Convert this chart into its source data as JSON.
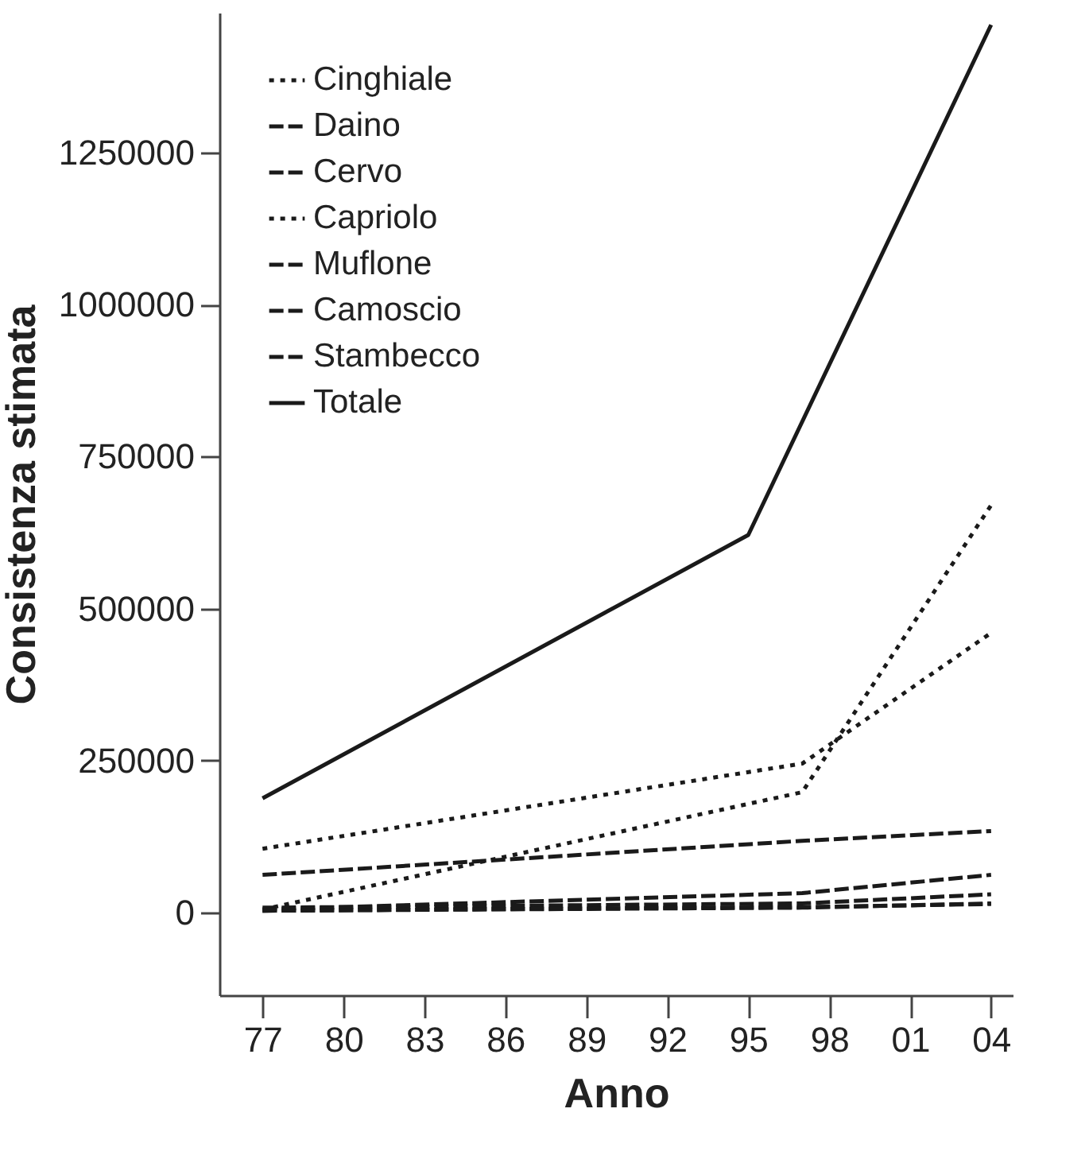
{
  "chart_data": {
    "type": "line",
    "xlabel": "Anno",
    "ylabel": "Consistenza stimata",
    "x": [
      1977,
      1997,
      2004
    ],
    "series": [
      {
        "name": "Cinghiale",
        "color": "#1a1a1a",
        "line_style": "dotted",
        "values": [
          5000,
          198000,
          670000
        ]
      },
      {
        "name": "Daino",
        "color": "#1a1a1a",
        "line_style": "dashed",
        "values": [
          8000,
          15000,
          30000
        ]
      },
      {
        "name": "Cervo",
        "color": "#1a1a1a",
        "line_style": "dashed",
        "values": [
          5000,
          32000,
          62000
        ]
      },
      {
        "name": "Capriolo",
        "color": "#1a1a1a",
        "line_style": "dotted",
        "values": [
          105000,
          245000,
          460000
        ]
      },
      {
        "name": "Muflone",
        "color": "#1a1a1a",
        "line_style": "dashed",
        "values": [
          3000,
          8000,
          15000
        ]
      },
      {
        "name": "Camoscio",
        "color": "#1a1a1a",
        "line_style": "dashed",
        "values": [
          62000,
          118000,
          134000
        ]
      },
      {
        "name": "Stambecco",
        "color": "#1a1a1a",
        "line_style": "dashed",
        "values": [
          3000,
          9000,
          14000
        ]
      },
      {
        "name": "Totale",
        "color": "#1a1a1a",
        "line_style": "solid",
        "x": [
          1977,
          1995,
          2004
        ],
        "values": [
          188000,
          621000,
          1460000
        ]
      }
    ],
    "xlim": [
      1975.4,
      2004.8
    ],
    "xticks": [
      {
        "value": 1977,
        "label": "77"
      },
      {
        "value": 1980,
        "label": "80"
      },
      {
        "value": 1983,
        "label": "83"
      },
      {
        "value": 1986,
        "label": "86"
      },
      {
        "value": 1989,
        "label": "89"
      },
      {
        "value": 1992,
        "label": "92"
      },
      {
        "value": 1995,
        "label": "95"
      },
      {
        "value": 1998,
        "label": "98"
      },
      {
        "value": 2001,
        "label": "01"
      },
      {
        "value": 2004,
        "label": "04"
      }
    ],
    "ylim": [
      -136000,
      1480000
    ],
    "yticks": [
      0,
      250000,
      500000,
      750000,
      1000000,
      1250000
    ],
    "grid": false,
    "legend": "top left",
    "marker": "none"
  }
}
